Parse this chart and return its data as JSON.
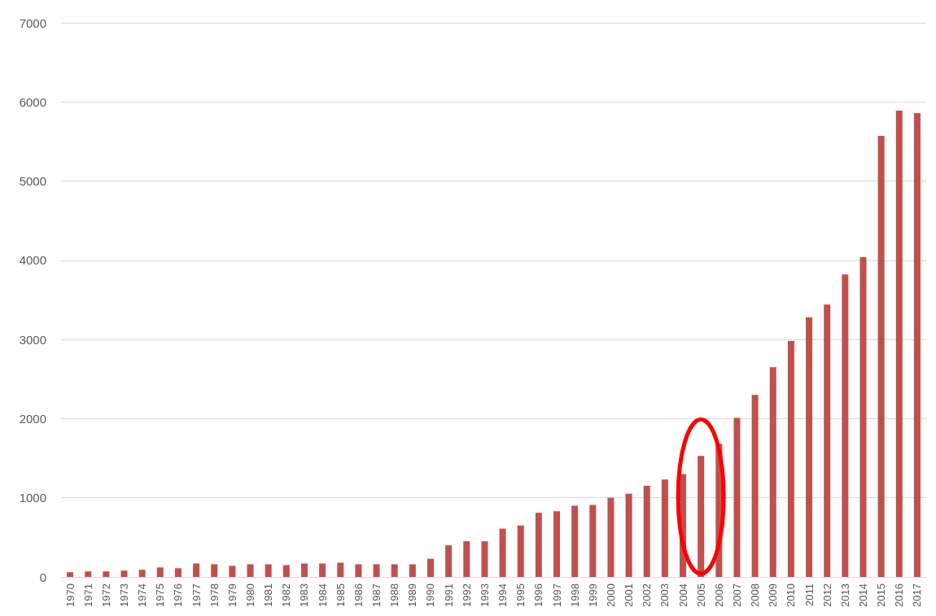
{
  "chart_data": {
    "type": "bar",
    "categories": [
      "1970",
      "1971",
      "1972",
      "1973",
      "1974",
      "1975",
      "1976",
      "1977",
      "1978",
      "1979",
      "1980",
      "1981",
      "1982",
      "1983",
      "1984",
      "1985",
      "1986",
      "1987",
      "1988",
      "1989",
      "1990",
      "1991",
      "1992",
      "1993",
      "1994",
      "1995",
      "1996",
      "1997",
      "1998",
      "1999",
      "2000",
      "2001",
      "2002",
      "2003",
      "2004",
      "2005",
      "2006",
      "2007",
      "2008",
      "2009",
      "2010",
      "2011",
      "2012",
      "2013",
      "2014",
      "2015",
      "2016",
      "2017"
    ],
    "values": [
      60,
      70,
      70,
      80,
      90,
      120,
      110,
      170,
      160,
      140,
      160,
      160,
      150,
      170,
      170,
      180,
      160,
      160,
      160,
      160,
      230,
      400,
      450,
      450,
      610,
      650,
      810,
      830,
      900,
      910,
      1000,
      1050,
      1150,
      1230,
      1300,
      1530,
      1680,
      2010,
      2300,
      2650,
      2980,
      3280,
      3440,
      3820,
      4040,
      5570,
      5890,
      5860
    ],
    "color": "#c0504d",
    "ylim": [
      0,
      7000
    ],
    "yticks": [
      0,
      1000,
      2000,
      3000,
      4000,
      5000,
      6000,
      7000
    ],
    "grid": "y"
  }
}
